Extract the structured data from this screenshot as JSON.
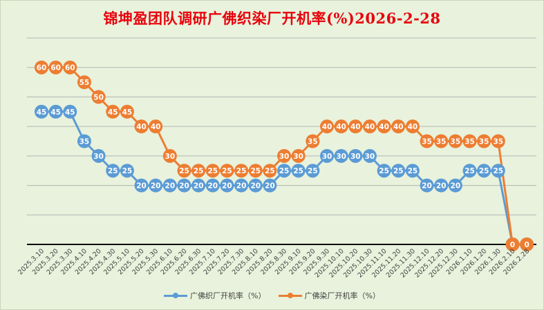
{
  "chart_data": {
    "type": "line",
    "title": "锦坤盈团队调研广佛织染厂开机率(%)2026-2-28",
    "xlabel": "",
    "ylabel": "",
    "ylim": [
      0,
      70
    ],
    "grid": true,
    "legend_position": "bottom",
    "data_labels": true,
    "categories": [
      "2025.3.10",
      "2025.3.20",
      "2025.3.30",
      "2025.4.10",
      "2025.4.20",
      "2025.4.30",
      "2025.5.10",
      "2025.5.20",
      "2025.5.30",
      "2025.6.10",
      "2025.6.20",
      "2025.6.30",
      "2025.7.10",
      "2025.7.20",
      "2025.7.30",
      "2025.8.10",
      "2025.8.20",
      "2025.8.30",
      "2025.9.10",
      "2025.9.20",
      "2025.9.30",
      "2025.10.10",
      "2025.10.20",
      "2025.10.30",
      "2025.11.10",
      "2025.11.20",
      "2025.11.30",
      "2025.12.10",
      "2025.12.20",
      "2025.12.30",
      "2026.1.10",
      "2026.1.20",
      "2026.1.30",
      "2026.2.10",
      "2026.2.28"
    ],
    "series": [
      {
        "name": "广佛织厂开机率（%）",
        "color": "#5b9bd5",
        "values": [
          45,
          45,
          45,
          35,
          30,
          25,
          25,
          20,
          20,
          20,
          20,
          20,
          20,
          20,
          20,
          20,
          20,
          25,
          25,
          25,
          30,
          30,
          30,
          30,
          25,
          25,
          25,
          20,
          20,
          20,
          25,
          25,
          25,
          0,
          0
        ]
      },
      {
        "name": "广佛染厂开机率（%）",
        "color": "#ed7d31",
        "values": [
          60,
          60,
          60,
          55,
          50,
          45,
          45,
          40,
          40,
          30,
          25,
          25,
          25,
          25,
          25,
          25,
          25,
          30,
          30,
          35,
          40,
          40,
          40,
          40,
          40,
          40,
          40,
          35,
          35,
          35,
          35,
          35,
          35,
          0,
          0
        ]
      }
    ]
  }
}
